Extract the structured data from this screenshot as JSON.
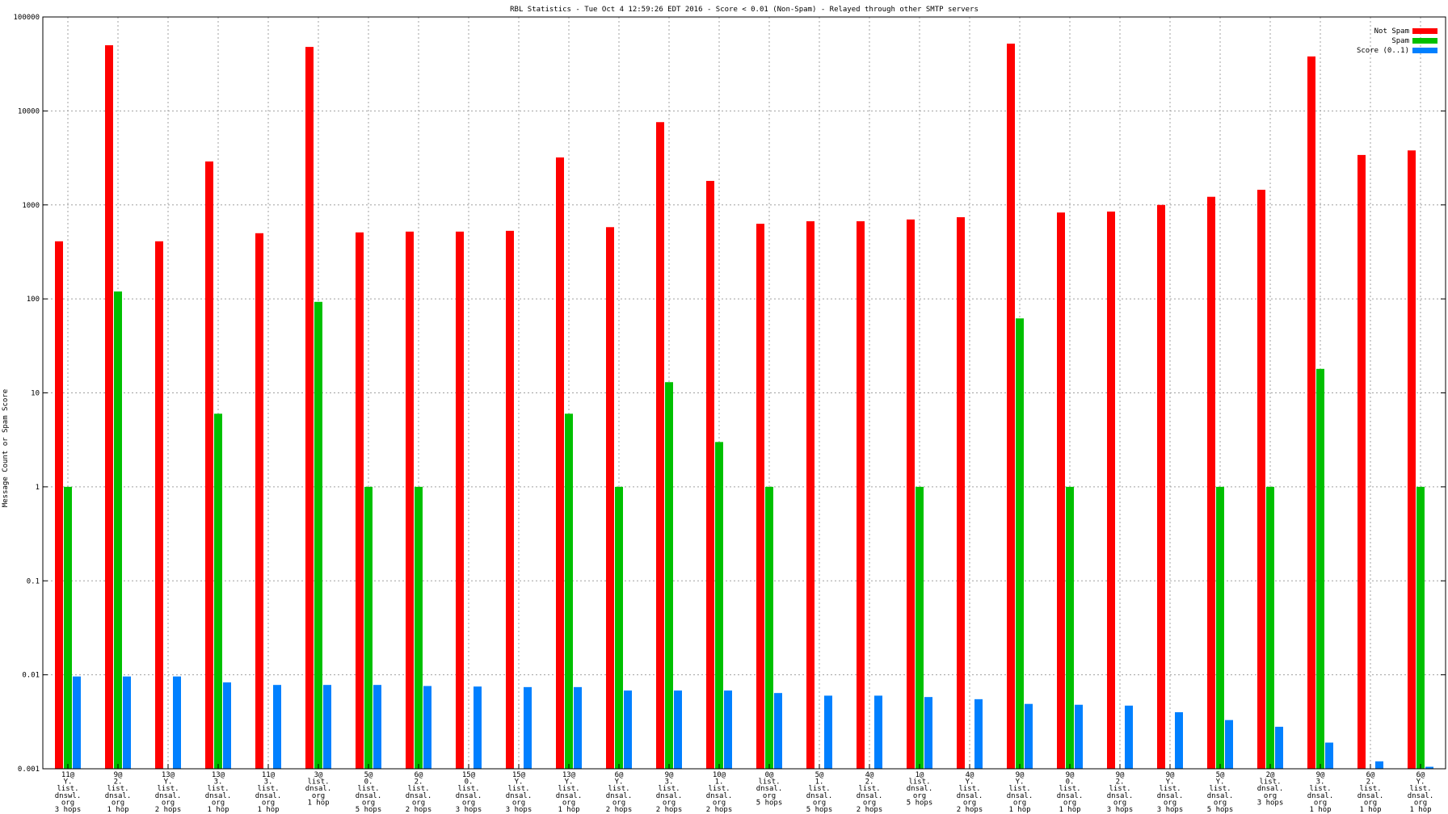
{
  "chart_data": {
    "type": "bar",
    "title": "RBL Statistics - Tue Oct  4 12:59:26 EDT 2016 - Score < 0.01 (Non-Spam) - Relayed through other SMTP servers",
    "ylabel": "Message Count or Spam Score",
    "xlabel": "",
    "yscale": "log",
    "ylim": [
      0.001,
      100000
    ],
    "yticks": [
      "100000",
      "10000",
      "1000",
      "100",
      "10",
      "1",
      "0.1",
      "0.01",
      "0.001"
    ],
    "grid": true,
    "legend_position": "top-right",
    "categories": [
      [
        "11@",
        "Y.",
        "list.",
        "dnswl.",
        "org",
        "3 hops"
      ],
      [
        "9@",
        "2.",
        "list.",
        "dnsal.",
        "org",
        "1 hop"
      ],
      [
        "13@",
        "Y.",
        "list.",
        "dnsal.",
        "org",
        "2 hops"
      ],
      [
        "13@",
        "3.",
        "list.",
        "dnsal.",
        "org",
        "1 hop"
      ],
      [
        "11@",
        "3.",
        "list.",
        "dnsal.",
        "org",
        "1 hop"
      ],
      [
        "3@",
        "list.",
        "dnsal.",
        "org",
        "1 hop"
      ],
      [
        "5@",
        "0.",
        "list.",
        "dnsal.",
        "org",
        "5 hops"
      ],
      [
        "6@",
        "2.",
        "list.",
        "dnsal.",
        "org",
        "2 hops"
      ],
      [
        "15@",
        "0.",
        "list.",
        "dnsal.",
        "org",
        "3 hops"
      ],
      [
        "15@",
        "Y.",
        "list.",
        "dnsal.",
        "org",
        "3 hops"
      ],
      [
        "13@",
        "Y.",
        "list.",
        "dnsal.",
        "org",
        "1 hop"
      ],
      [
        "6@",
        "Y.",
        "list.",
        "dnsal.",
        "org",
        "2 hops"
      ],
      [
        "9@",
        "3.",
        "list.",
        "dnsal.",
        "org",
        "2 hops"
      ],
      [
        "10@",
        "1.",
        "list.",
        "dnsal.",
        "org",
        "2 hops"
      ],
      [
        "0@",
        "list.",
        "dnsal.",
        "org",
        "5 hops"
      ],
      [
        "5@",
        "1.",
        "list.",
        "dnsal.",
        "org",
        "5 hops"
      ],
      [
        "4@",
        "2.",
        "list.",
        "dnsal.",
        "org",
        "2 hops"
      ],
      [
        "1@",
        "list.",
        "dnsal.",
        "org",
        "5 hops"
      ],
      [
        "4@",
        "Y.",
        "list.",
        "dnsal.",
        "org",
        "2 hops"
      ],
      [
        "9@",
        "Y.",
        "list.",
        "dnsal.",
        "org",
        "1 hop"
      ],
      [
        "9@",
        "0.",
        "list.",
        "dnsal.",
        "org",
        "1 hop"
      ],
      [
        "9@",
        "2.",
        "list.",
        "dnsal.",
        "org",
        "3 hops"
      ],
      [
        "9@",
        "Y.",
        "list.",
        "dnsal.",
        "org",
        "3 hops"
      ],
      [
        "5@",
        "Y.",
        "list.",
        "dnsal.",
        "org",
        "5 hops"
      ],
      [
        "2@",
        "list.",
        "dnsal.",
        "org",
        "3 hops"
      ],
      [
        "9@",
        "3.",
        "list.",
        "dnsal.",
        "org",
        "1 hop"
      ],
      [
        "6@",
        "2.",
        "list.",
        "dnsal.",
        "org",
        "1 hop"
      ],
      [
        "6@",
        "Y.",
        "list.",
        "dnsal.",
        "org",
        "1 hop"
      ]
    ],
    "series": [
      {
        "name": "Not Spam",
        "color": "#ff0000",
        "values": [
          410,
          50000,
          410,
          2900,
          500,
          48000,
          510,
          520,
          520,
          530,
          3200,
          580,
          7600,
          1800,
          630,
          670,
          670,
          700,
          740,
          52000,
          830,
          850,
          1000,
          1220,
          1450,
          38000,
          3400,
          3800
        ]
      },
      {
        "name": "Spam",
        "color": "#00c000",
        "values": [
          1,
          120,
          null,
          6,
          null,
          93,
          1,
          1,
          null,
          null,
          6,
          1,
          13,
          3,
          1,
          null,
          null,
          1,
          null,
          62,
          1,
          null,
          null,
          1,
          1,
          18,
          null,
          1
        ]
      },
      {
        "name": "Score (0..1)",
        "color": "#0080ff",
        "values": [
          0.0096,
          0.0096,
          0.0096,
          0.0083,
          0.0078,
          0.0078,
          0.0078,
          0.0076,
          0.0075,
          0.0074,
          0.0074,
          0.0068,
          0.0068,
          0.0068,
          0.0064,
          0.006,
          0.006,
          0.0058,
          0.0055,
          0.0049,
          0.0048,
          0.0047,
          0.004,
          0.0033,
          0.0028,
          0.0019,
          0.0012,
          0.00105
        ]
      }
    ]
  }
}
